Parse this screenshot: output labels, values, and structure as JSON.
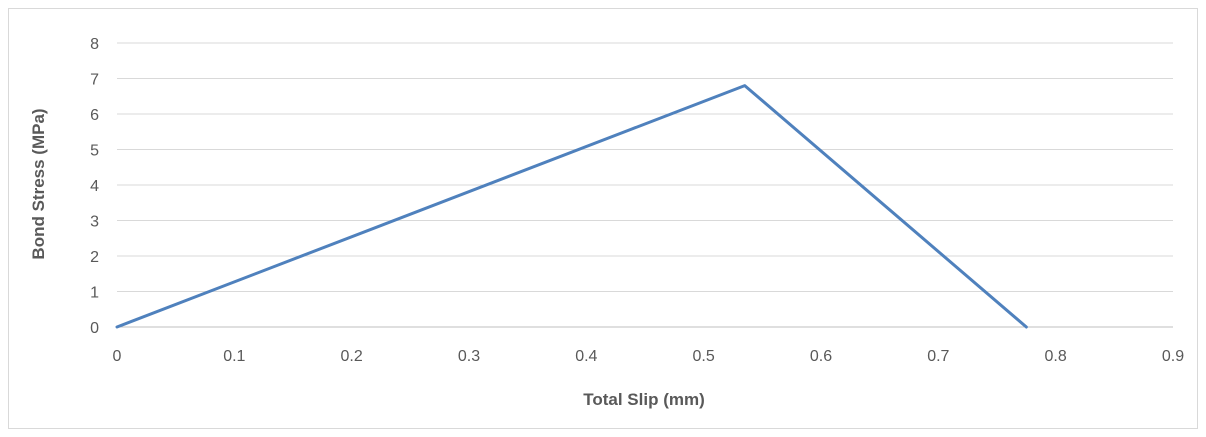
{
  "chart_data": {
    "type": "line",
    "title": "",
    "xlabel": "Total Slip (mm)",
    "ylabel": "Bond Stress (MPa)",
    "xlim": [
      0,
      0.9
    ],
    "ylim": [
      0,
      8
    ],
    "x_ticks": [
      "0",
      "0.1",
      "0.2",
      "0.3",
      "0.4",
      "0.5",
      "0.6",
      "0.7",
      "0.8",
      "0.9"
    ],
    "y_ticks": [
      "0",
      "1",
      "2",
      "3",
      "4",
      "5",
      "6",
      "7",
      "8"
    ],
    "grid": true,
    "legend": "none",
    "series": [
      {
        "color": "#4f81bd",
        "x": [
          0,
          0.535,
          0.775
        ],
        "y": [
          0,
          6.8,
          0
        ]
      }
    ]
  }
}
